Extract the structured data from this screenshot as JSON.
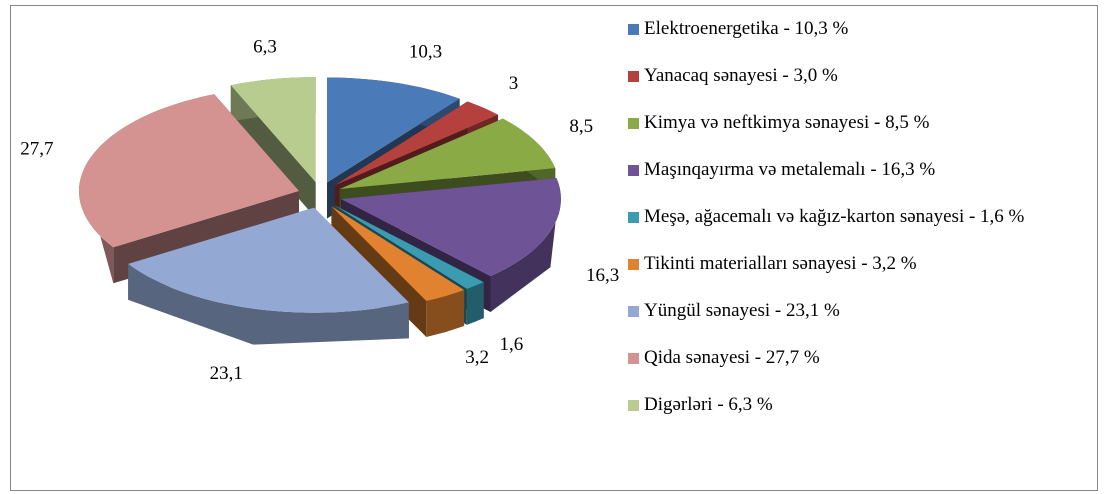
{
  "chart_data": {
    "type": "pie",
    "categories": [
      "Elektroenergetika - 10,3 %",
      "Yanacaq sənayesi - 3,0 %",
      "Kimya və neftkimya sənayesi - 8,5 %",
      "Maşınqayırma və metalemalı - 16,3 %",
      "Meşə, ağacemalı və kağız-karton sənayesi - 1,6 %",
      "Tikinti materialları sənayesi - 3,2 %",
      "Yüngül sənayesi - 23,1 %",
      "Qida sənayesi - 27,7 %",
      "Digərləri - 6,3 %"
    ],
    "values": [
      10.3,
      3.0,
      8.5,
      16.3,
      1.6,
      3.2,
      23.1,
      27.7,
      6.3
    ],
    "value_labels": [
      "10,3",
      "3",
      "8,5",
      "16,3",
      "1,6",
      "3,2",
      "23,1",
      "27,7",
      "6,3"
    ],
    "colors": [
      "#4a7ab8",
      "#b5413e",
      "#8aaa45",
      "#6f5397",
      "#3b9bb0",
      "#e0822f",
      "#93a9d3",
      "#d49391",
      "#b8cc8f"
    ],
    "legend": "right"
  }
}
